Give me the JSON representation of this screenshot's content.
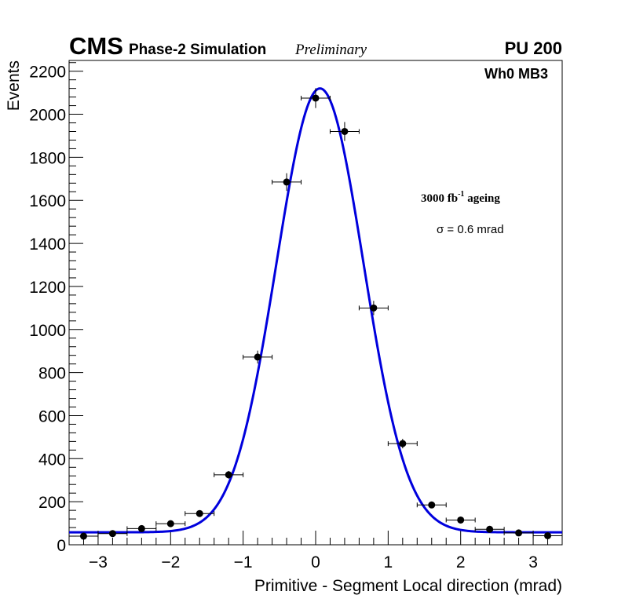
{
  "header": {
    "experiment": "CMS",
    "simulation": "Phase-2 Simulation",
    "status": "Preliminary",
    "pileup": "PU 200"
  },
  "annotations": {
    "station": "Wh0 MB3",
    "ageing_prefix": "3000 fb",
    "ageing_exp": "-1",
    "ageing_suffix": " ageing",
    "sigma": "σ = 0.6 mrad"
  },
  "colors": {
    "fit": "#0000dd",
    "points": "#000000",
    "frame": "#000000"
  },
  "chart_data": {
    "type": "scatter",
    "title": "",
    "xlabel": "Primitive - Segment Local direction (mrad)",
    "ylabel": "Events",
    "xlim": [
      -3.4,
      3.4
    ],
    "ylim": [
      0,
      2250
    ],
    "x_ticks": [
      -3,
      -2,
      -1,
      0,
      1,
      2,
      3
    ],
    "x_tick_labels": [
      "−3",
      "−2",
      "−1",
      "0",
      "1",
      "2",
      "3"
    ],
    "y_ticks": [
      0,
      200,
      400,
      600,
      800,
      1000,
      1200,
      1400,
      1600,
      1800,
      2000,
      2200
    ],
    "y_tick_labels": [
      "0",
      "200",
      "400",
      "600",
      "800",
      "1000",
      "1200",
      "1400",
      "1600",
      "1800",
      "2000",
      "2200"
    ],
    "bin_half_width": 0.2,
    "series": [
      {
        "name": "data",
        "x": [
          -3.2,
          -2.8,
          -2.4,
          -2.0,
          -1.6,
          -1.2,
          -0.8,
          -0.4,
          0.0,
          0.4,
          0.8,
          1.2,
          1.6,
          2.0,
          2.4,
          2.8,
          3.2
        ],
        "y": [
          40,
          52,
          75,
          98,
          145,
          325,
          872,
          1685,
          2075,
          1920,
          1100,
          470,
          185,
          115,
          72,
          55,
          42
        ],
        "yerr": [
          6,
          7,
          9,
          10,
          12,
          18,
          30,
          41,
          46,
          44,
          33,
          22,
          14,
          11,
          8,
          7,
          6
        ]
      },
      {
        "name": "fit",
        "model": "gaussian + constant",
        "amplitude": 2062,
        "mean": 0.06,
        "sigma": 0.6,
        "constant": 58
      }
    ]
  }
}
